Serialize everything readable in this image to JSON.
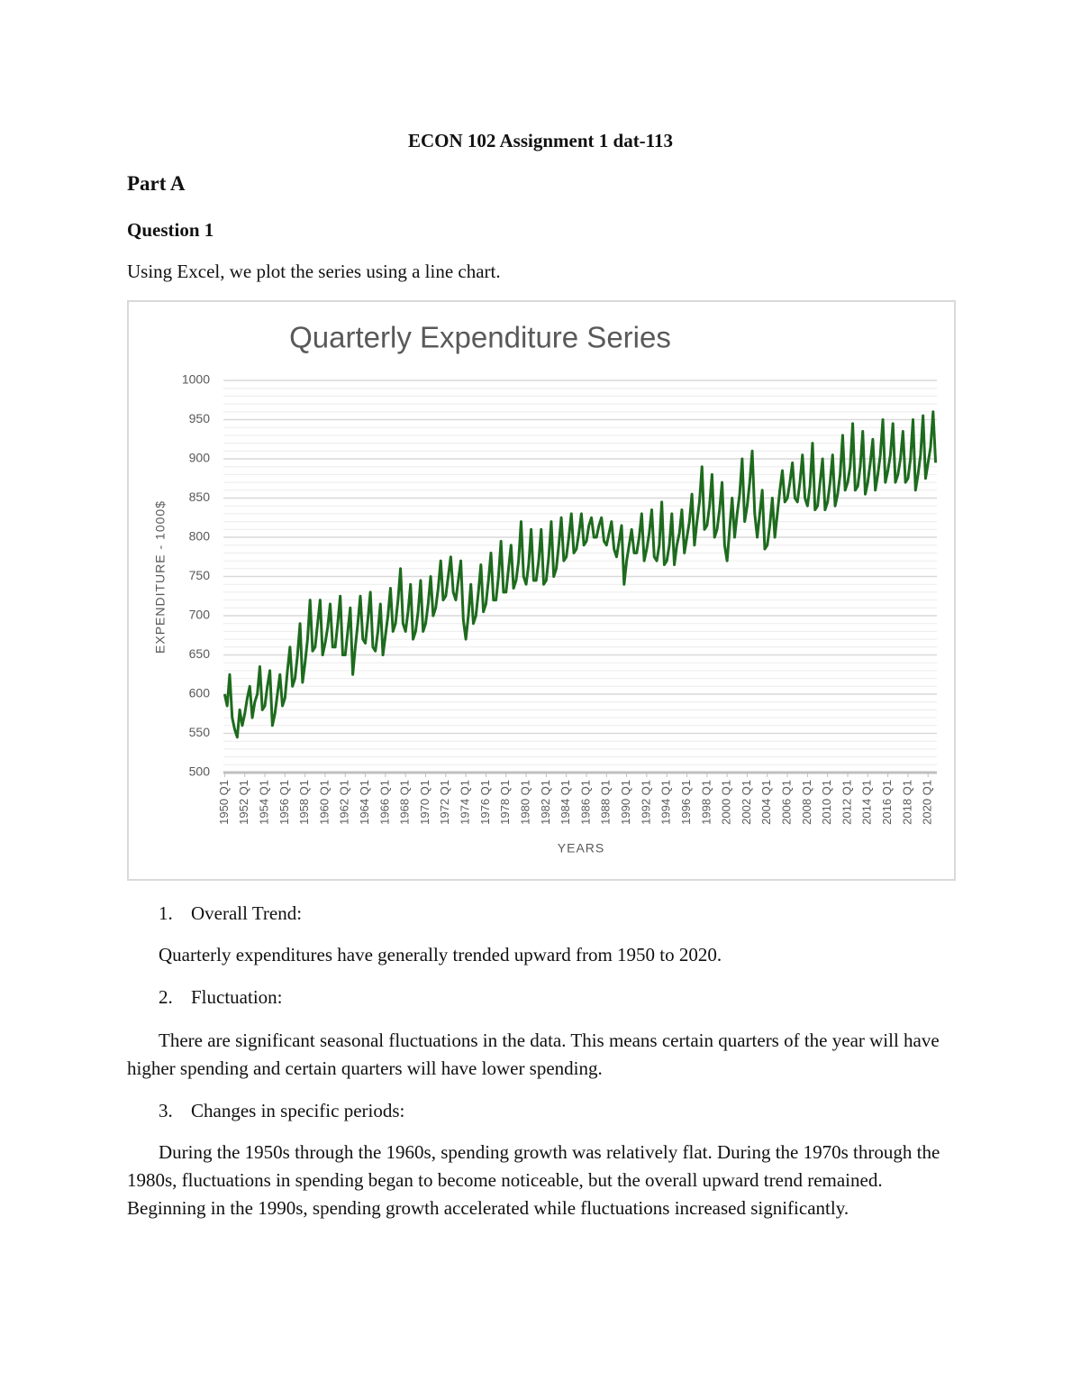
{
  "header": {
    "title": "ECON 102 Assignment 1 dat-113"
  },
  "part": "Part A",
  "question": "Question 1",
  "intro": "Using Excel, we plot the series using a line chart.",
  "chart_data": {
    "type": "line",
    "title": "Quarterly Expenditure Series",
    "x_label": "YEARS",
    "y_label": "EXPENDITURE - 1000$",
    "color": "#1e6b1e",
    "grid": true,
    "minor_grid": true,
    "ylim": [
      500,
      1000
    ],
    "yticks": [
      500,
      550,
      600,
      650,
      700,
      750,
      800,
      850,
      900,
      950,
      1000
    ],
    "categories": [
      "1950 Q1",
      null,
      null,
      null,
      null,
      null,
      null,
      null,
      "1952 Q1",
      null,
      null,
      null,
      null,
      null,
      null,
      null,
      "1954 Q1",
      null,
      null,
      null,
      null,
      null,
      null,
      null,
      "1956 Q1",
      null,
      null,
      null,
      null,
      null,
      null,
      null,
      "1958 Q1",
      null,
      null,
      null,
      null,
      null,
      null,
      null,
      "1960 Q1",
      null,
      null,
      null,
      null,
      null,
      null,
      null,
      "1962 Q1",
      null,
      null,
      null,
      null,
      null,
      null,
      null,
      "1964 Q1",
      null,
      null,
      null,
      null,
      null,
      null,
      null,
      "1966 Q1",
      null,
      null,
      null,
      null,
      null,
      null,
      null,
      "1968 Q1",
      null,
      null,
      null,
      null,
      null,
      null,
      null,
      "1970 Q1",
      null,
      null,
      null,
      null,
      null,
      null,
      null,
      "1972 Q1",
      null,
      null,
      null,
      null,
      null,
      null,
      null,
      "1974 Q1",
      null,
      null,
      null,
      null,
      null,
      null,
      null,
      "1976 Q1",
      null,
      null,
      null,
      null,
      null,
      null,
      null,
      "1978 Q1",
      null,
      null,
      null,
      null,
      null,
      null,
      null,
      "1980 Q1",
      null,
      null,
      null,
      null,
      null,
      null,
      null,
      "1982 Q1",
      null,
      null,
      null,
      null,
      null,
      null,
      null,
      "1984 Q1",
      null,
      null,
      null,
      null,
      null,
      null,
      null,
      "1986 Q1",
      null,
      null,
      null,
      null,
      null,
      null,
      null,
      "1988 Q1",
      null,
      null,
      null,
      null,
      null,
      null,
      null,
      "1990 Q1",
      null,
      null,
      null,
      null,
      null,
      null,
      null,
      "1992 Q1",
      null,
      null,
      null,
      null,
      null,
      null,
      null,
      "1994 Q1",
      null,
      null,
      null,
      null,
      null,
      null,
      null,
      "1996 Q1",
      null,
      null,
      null,
      null,
      null,
      null,
      null,
      "1998 Q1",
      null,
      null,
      null,
      null,
      null,
      null,
      null,
      "2000 Q1",
      null,
      null,
      null,
      null,
      null,
      null,
      null,
      "2002 Q1",
      null,
      null,
      null,
      null,
      null,
      null,
      null,
      "2004 Q1",
      null,
      null,
      null,
      null,
      null,
      null,
      null,
      "2006 Q1",
      null,
      null,
      null,
      null,
      null,
      null,
      null,
      "2008 Q1",
      null,
      null,
      null,
      null,
      null,
      null,
      null,
      "2010 Q1",
      null,
      null,
      null,
      null,
      null,
      null,
      null,
      "2012 Q1",
      null,
      null,
      null,
      null,
      null,
      null,
      null,
      "2014 Q1",
      null,
      null,
      null,
      null,
      null,
      null,
      null,
      "2016 Q1",
      null,
      null,
      null,
      null,
      null,
      null,
      null,
      "2018 Q1",
      null,
      null,
      null,
      null,
      null,
      null,
      null,
      "2020 Q1",
      null,
      null,
      null
    ],
    "values": [
      600,
      585,
      625,
      570,
      555,
      545,
      580,
      560,
      575,
      595,
      610,
      570,
      590,
      600,
      635,
      580,
      585,
      610,
      630,
      560,
      575,
      600,
      625,
      585,
      595,
      630,
      660,
      610,
      620,
      650,
      690,
      615,
      640,
      670,
      720,
      655,
      660,
      690,
      720,
      650,
      665,
      685,
      715,
      660,
      660,
      690,
      725,
      650,
      650,
      680,
      710,
      625,
      660,
      690,
      725,
      670,
      665,
      695,
      730,
      660,
      655,
      680,
      715,
      650,
      675,
      700,
      735,
      680,
      690,
      720,
      760,
      690,
      680,
      705,
      740,
      670,
      680,
      705,
      745,
      680,
      690,
      715,
      750,
      700,
      710,
      735,
      770,
      720,
      725,
      750,
      775,
      730,
      720,
      745,
      770,
      695,
      670,
      700,
      740,
      690,
      700,
      730,
      765,
      705,
      715,
      745,
      780,
      720,
      720,
      750,
      795,
      730,
      730,
      760,
      790,
      735,
      745,
      770,
      820,
      750,
      740,
      765,
      810,
      745,
      745,
      770,
      810,
      740,
      745,
      775,
      820,
      750,
      760,
      790,
      825,
      770,
      775,
      800,
      830,
      780,
      785,
      805,
      830,
      790,
      795,
      815,
      825,
      800,
      800,
      815,
      825,
      795,
      790,
      805,
      820,
      785,
      775,
      795,
      815,
      740,
      770,
      790,
      810,
      780,
      780,
      800,
      830,
      770,
      785,
      805,
      835,
      775,
      770,
      790,
      845,
      765,
      770,
      790,
      830,
      765,
      790,
      805,
      835,
      780,
      800,
      820,
      855,
      790,
      820,
      845,
      890,
      810,
      815,
      840,
      880,
      800,
      810,
      835,
      870,
      790,
      770,
      810,
      850,
      800,
      830,
      855,
      900,
      820,
      840,
      870,
      910,
      830,
      800,
      830,
      860,
      785,
      790,
      815,
      850,
      800,
      830,
      860,
      885,
      845,
      850,
      870,
      895,
      850,
      845,
      870,
      905,
      850,
      840,
      865,
      920,
      835,
      840,
      870,
      900,
      835,
      845,
      870,
      905,
      840,
      855,
      880,
      930,
      860,
      870,
      890,
      945,
      860,
      865,
      890,
      935,
      855,
      870,
      895,
      925,
      860,
      880,
      905,
      950,
      870,
      885,
      905,
      945,
      870,
      880,
      900,
      935,
      870,
      875,
      900,
      950,
      860,
      880,
      905,
      955,
      875,
      895,
      915,
      960,
      895
    ]
  },
  "sections": [
    {
      "number": "1.",
      "heading": "Overall Trend:",
      "text": "Quarterly expenditures have generally trended upward from 1950 to 2020."
    },
    {
      "number": "2.",
      "heading": "Fluctuation:",
      "text": "There are significant seasonal fluctuations in the data. This means certain quarters of the year will have higher spending and certain quarters will have lower spending."
    },
    {
      "number": "3.",
      "heading": "Changes in specific periods:",
      "text": "During the 1950s through the 1960s, spending growth was relatively flat. During the 1970s through the 1980s, fluctuations in spending began to become noticeable, but the overall upward trend remained. Beginning in the 1990s, spending growth accelerated while fluctuations increased significantly."
    }
  ]
}
